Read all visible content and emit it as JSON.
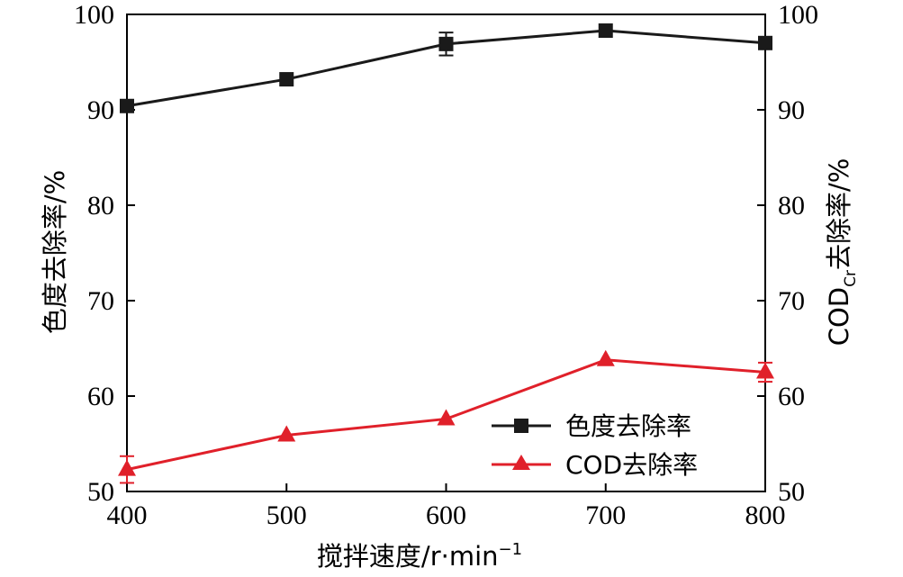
{
  "chart_data": {
    "type": "line",
    "x": [
      400,
      500,
      600,
      700,
      800
    ],
    "xlim": [
      400,
      800
    ],
    "xticks": [
      "400",
      "500",
      "600",
      "700",
      "800"
    ],
    "xlabel": {
      "main": "搅拌速度/r·min",
      "sup": "−1"
    },
    "ylim": [
      50,
      100
    ],
    "yticks": [
      "50",
      "60",
      "70",
      "80",
      "90",
      "100"
    ],
    "ylabel_left": "色度去除率/%",
    "ylabel_right": {
      "cod": "COD",
      "sub": "Cr",
      "rest": "去除率/%"
    },
    "grid": false,
    "legend_position": "lower-right",
    "series": [
      {
        "name": "色度去除率",
        "marker": "square",
        "color": "#1a1a1a",
        "values": [
          90.4,
          93.2,
          96.9,
          98.3,
          97.0
        ],
        "error": [
          0,
          0,
          1.2,
          0,
          0
        ]
      },
      {
        "name": "COD去除率",
        "marker": "triangle",
        "color": "#e0202a",
        "values": [
          52.3,
          55.9,
          57.6,
          63.8,
          62.5
        ],
        "error": [
          1.4,
          0,
          0,
          0,
          1.0
        ]
      }
    ]
  }
}
